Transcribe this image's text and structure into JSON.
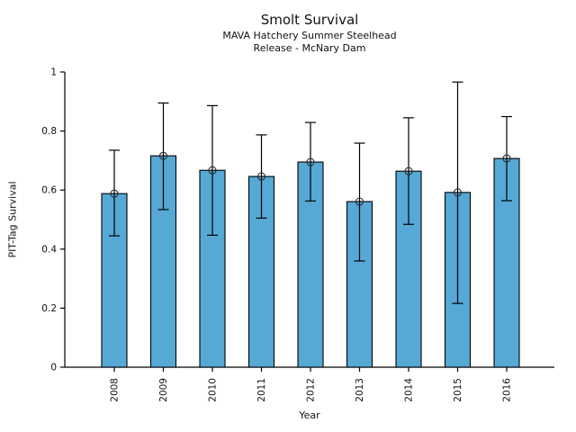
{
  "chart_data": {
    "type": "bar",
    "title": "Smolt Survival",
    "subtitle1": "MAVA Hatchery Summer Steelhead",
    "subtitle2": "Release - McNary Dam",
    "xlabel": "Year",
    "ylabel": "PIT-Tag Survival",
    "categories": [
      "2008",
      "2009",
      "2010",
      "2011",
      "2012",
      "2013",
      "2014",
      "2015",
      "2016"
    ],
    "values": [
      0.588,
      0.716,
      0.667,
      0.646,
      0.695,
      0.561,
      0.664,
      0.592,
      0.707
    ],
    "error_low": [
      0.445,
      0.534,
      0.447,
      0.505,
      0.563,
      0.36,
      0.484,
      0.216,
      0.564
    ],
    "error_high": [
      0.735,
      0.895,
      0.886,
      0.787,
      0.829,
      0.759,
      0.845,
      0.966,
      0.849
    ],
    "ylim": [
      0,
      1
    ],
    "yticks": [
      "0",
      "0.2",
      "0.4",
      "0.6",
      "0.8",
      "1"
    ],
    "x_tick_rotation": 90,
    "grid": false,
    "legend": null,
    "marker": "open-circle",
    "bar_color": "#56a8d5",
    "bar_edge_color": "#000000",
    "error_color": "#000000",
    "marker_edge_color": "#2b2b2b",
    "axis_color": "#000000"
  }
}
